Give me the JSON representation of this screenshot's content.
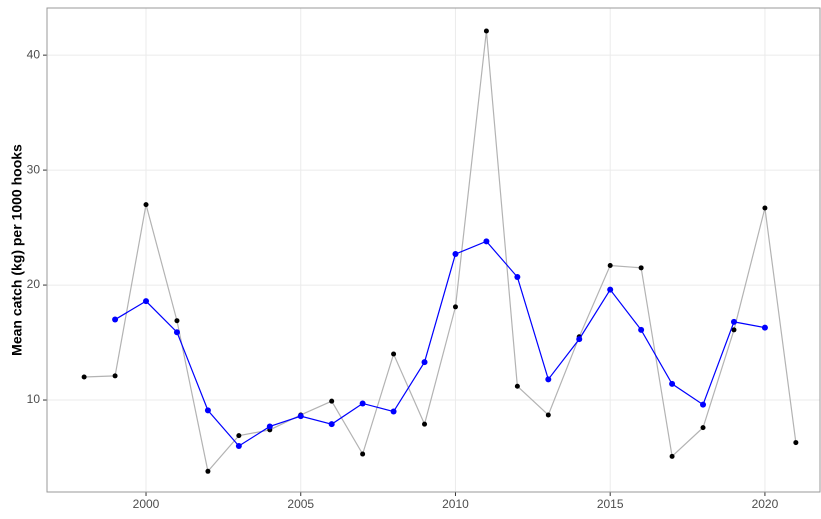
{
  "chart_data": {
    "type": "line",
    "y_label": "Mean catch (kg) per 1000 hooks",
    "xlim": [
      1996.8,
      2021.78
    ],
    "xticks": [
      2000,
      2005,
      2010,
      2015,
      2020
    ],
    "ylim": [
      2,
      44.1
    ],
    "yticks": [
      10,
      20,
      30,
      40
    ],
    "grid": true,
    "series": [
      {
        "color": "#b3b3b3",
        "marker_color": "#000000",
        "x": [
          1998,
          1999,
          2000,
          2001,
          2002,
          2003,
          2004,
          2005,
          2006,
          2007,
          2008,
          2009,
          2010,
          2011,
          2012,
          2013,
          2014,
          2015,
          2016,
          2017,
          2018,
          2019,
          2020,
          2021
        ],
        "values": [
          12.0,
          12.1,
          27.0,
          16.9,
          3.8,
          6.9,
          7.4,
          8.7,
          9.9,
          5.3,
          14.0,
          7.9,
          18.1,
          42.1,
          11.2,
          8.7,
          15.5,
          21.7,
          21.5,
          5.1,
          7.6,
          16.1,
          26.7,
          6.3
        ]
      },
      {
        "color": "#0000ff",
        "marker_color": "#0000ff",
        "x": [
          1999,
          2000,
          2001,
          2002,
          2003,
          2004,
          2005,
          2006,
          2007,
          2008,
          2009,
          2010,
          2011,
          2012,
          2013,
          2014,
          2015,
          2016,
          2017,
          2018,
          2019,
          2020
        ],
        "values": [
          17.0,
          18.6,
          15.9,
          9.1,
          6.0,
          7.7,
          8.6,
          7.9,
          9.7,
          9.0,
          13.3,
          22.7,
          23.8,
          20.7,
          11.8,
          15.3,
          19.6,
          16.1,
          11.4,
          9.6,
          16.8,
          16.3
        ]
      }
    ]
  }
}
